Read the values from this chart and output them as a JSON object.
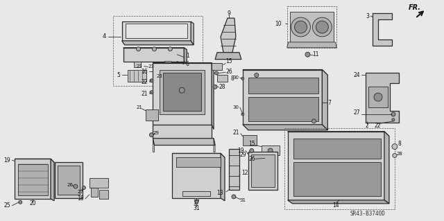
{
  "background_color": "#f0f0f0",
  "diagram_code": "SR43-B3740D",
  "line_color": "#2a2a2a",
  "label_color": "#111111",
  "fig_w": 6.4,
  "fig_h": 3.19,
  "dpi": 100
}
